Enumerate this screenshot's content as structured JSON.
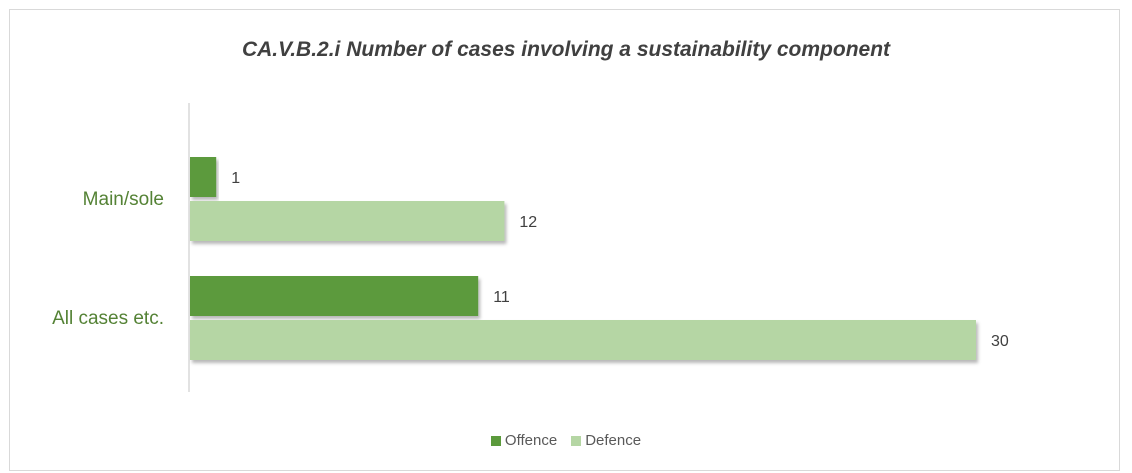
{
  "chart_data": {
    "type": "bar",
    "orientation": "horizontal",
    "title": "CA.V.B.2.i Number of cases involving a sustainability component",
    "categories": [
      "Main/sole",
      "All cases etc."
    ],
    "series": [
      {
        "name": "Offence",
        "values": [
          1,
          11
        ],
        "color": "#5b9a3c"
      },
      {
        "name": "Defence",
        "values": [
          12,
          30
        ],
        "color": "#b5d6a4"
      }
    ],
    "xlabel": "",
    "ylabel": "",
    "xlim": [
      0,
      30
    ],
    "grid": false,
    "data_labels": true,
    "legend_position": "bottom",
    "category_label_color": "#548235",
    "value_label_color": "#404040"
  }
}
